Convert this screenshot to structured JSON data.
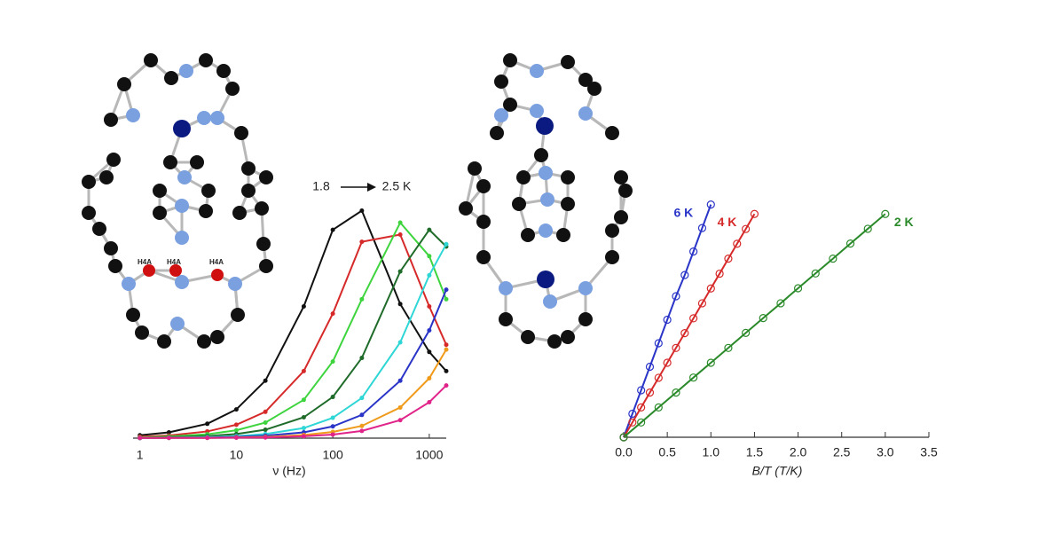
{
  "chart_data": [
    {
      "type": "line",
      "xlabel": "ν (Hz)",
      "xscale": "log",
      "annotations": [
        "1.8",
        "2.5 K"
      ],
      "x": [
        1,
        2,
        5,
        10,
        20,
        50,
        100,
        200,
        500,
        1000,
        1500
      ],
      "xlim": [
        0.85,
        1500
      ],
      "xticks": [
        1,
        10,
        100,
        1000
      ],
      "ylim": [
        0,
        1
      ],
      "series": [
        {
          "color": "#111111",
          "values": [
            0.012,
            0.024,
            0.06,
            0.12,
            0.24,
            0.55,
            0.87,
            0.95,
            0.56,
            0.36,
            0.28
          ]
        },
        {
          "color": "#d62a2a",
          "values": [
            0.006,
            0.011,
            0.028,
            0.056,
            0.11,
            0.28,
            0.52,
            0.82,
            0.85,
            0.55,
            0.39
          ]
        },
        {
          "color": "#3ed43e",
          "values": [
            0.003,
            0.007,
            0.016,
            0.033,
            0.065,
            0.16,
            0.32,
            0.58,
            0.9,
            0.76,
            0.58
          ]
        },
        {
          "color": "#1f6b2a",
          "values": [
            0.002,
            0.0035,
            0.009,
            0.017,
            0.035,
            0.087,
            0.172,
            0.335,
            0.696,
            0.87,
            0.8
          ]
        },
        {
          "color": "#2fd6d6",
          "values": [
            0.001,
            0.002,
            0.004,
            0.0085,
            0.017,
            0.042,
            0.085,
            0.168,
            0.4,
            0.68,
            0.81
          ]
        },
        {
          "color": "#2a35c8",
          "values": [
            0,
            0.001,
            0.002,
            0.005,
            0.01,
            0.024,
            0.049,
            0.097,
            0.24,
            0.45,
            0.62
          ]
        },
        {
          "color": "#f09a1a",
          "values": [
            0.001,
            0.001,
            0.001,
            0.003,
            0.005,
            0.013,
            0.026,
            0.051,
            0.128,
            0.25,
            0.37
          ]
        },
        {
          "color": "#e0248a",
          "values": [
            0.001,
            0.001,
            0.001,
            0.002,
            0.003,
            0.008,
            0.015,
            0.03,
            0.075,
            0.15,
            0.22
          ]
        }
      ]
    },
    {
      "type": "scatter-line",
      "xlabel": "B/T (T/K)",
      "xlim": [
        0,
        3.5
      ],
      "ylim": [
        0,
        1
      ],
      "xticks": [
        {
          "value": 0,
          "label": "0.0"
        },
        0.5,
        {
          "value": 1,
          "label": "1.0"
        },
        1.5,
        {
          "value": 2,
          "label": "2.0"
        },
        2.5,
        {
          "value": 3,
          "label": "3.0"
        },
        3.5
      ],
      "series": [
        {
          "name": "6 K",
          "color": "#2a35c8",
          "x": [
            0,
            0.1,
            0.2,
            0.3,
            0.4,
            0.5,
            0.6,
            0.7,
            0.8,
            0.9,
            1.0
          ],
          "values": [
            0,
            0.1,
            0.2,
            0.3,
            0.4,
            0.5,
            0.6,
            0.69,
            0.79,
            0.89,
            0.99
          ]
        },
        {
          "name": "4 K",
          "color": "#d62a2a",
          "x": [
            0,
            0.1,
            0.2,
            0.3,
            0.4,
            0.5,
            0.6,
            0.7,
            0.8,
            0.9,
            1.0,
            1.1,
            1.2,
            1.3,
            1.4,
            1.5
          ],
          "values": [
            0,
            0.063,
            0.127,
            0.19,
            0.253,
            0.317,
            0.38,
            0.443,
            0.506,
            0.57,
            0.633,
            0.696,
            0.76,
            0.823,
            0.886,
            0.95
          ]
        },
        {
          "name": "2 K",
          "color": "#2a8a2a",
          "x": [
            0,
            0.2,
            0.4,
            0.6,
            0.8,
            1.0,
            1.2,
            1.4,
            1.6,
            1.8,
            2.0,
            2.2,
            2.4,
            2.6,
            2.8,
            3.0
          ],
          "values": [
            0,
            0.063,
            0.127,
            0.19,
            0.254,
            0.317,
            0.38,
            0.444,
            0.507,
            0.57,
            0.634,
            0.697,
            0.76,
            0.824,
            0.887,
            0.95
          ]
        }
      ]
    }
  ],
  "molecule_labels": [
    "H4A",
    "H4A",
    "H4A"
  ]
}
